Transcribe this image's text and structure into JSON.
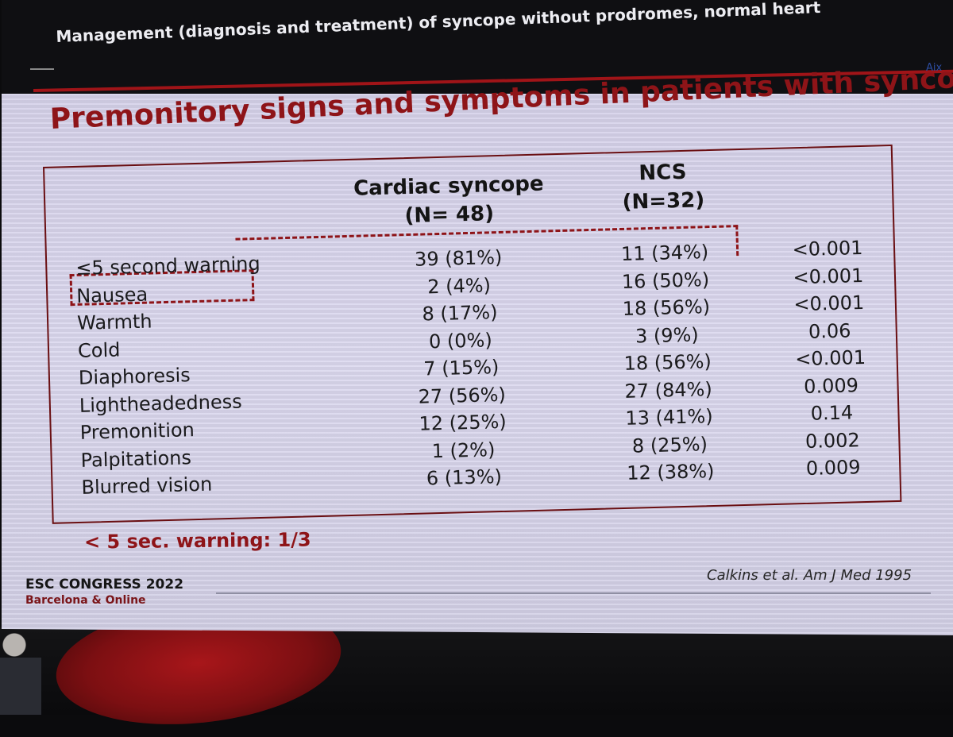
{
  "header": {
    "title": "Management (diagnosis and treatment) of syncope without prodromes, normal heart",
    "logo_text": "Aix"
  },
  "slide": {
    "title": "Premonitory signs and symptoms in patients with syncope",
    "columns": {
      "cardiac_name": "Cardiac syncope",
      "cardiac_n": "(N= 48)",
      "ncs_name": "NCS",
      "ncs_n": "(N=32)"
    },
    "rows": [
      {
        "label": "≤5 second warning",
        "cardiac": "39 (81%)",
        "ncs": "11 (34%)",
        "p": "<0.001"
      },
      {
        "label": "Nausea",
        "cardiac": "2 (4%)",
        "ncs": "16 (50%)",
        "p": "<0.001"
      },
      {
        "label": "Warmth",
        "cardiac": "8 (17%)",
        "ncs": "18 (56%)",
        "p": "<0.001"
      },
      {
        "label": "Cold",
        "cardiac": "0 (0%)",
        "ncs": "3 (9%)",
        "p": "0.06"
      },
      {
        "label": "Diaphoresis",
        "cardiac": "7 (15%)",
        "ncs": "18 (56%)",
        "p": "<0.001"
      },
      {
        "label": "Lightheadedness",
        "cardiac": "27 (56%)",
        "ncs": "27 (84%)",
        "p": "0.009"
      },
      {
        "label": "Premonition",
        "cardiac": "12 (25%)",
        "ncs": "13 (41%)",
        "p": "0.14"
      },
      {
        "label": "Palpitations",
        "cardiac": "1 (2%)",
        "ncs": "8 (25%)",
        "p": "0.002"
      },
      {
        "label": "Blurred vision",
        "cardiac": "6 (13%)",
        "ncs": "12 (38%)",
        "p": "0.009"
      }
    ],
    "note": "< 5 sec. warning: 1/3",
    "reference": "Calkins et al. Am J Med 1995"
  },
  "footer": {
    "congress": "ESC CONGRESS 2022",
    "location": "Barcelona & Online"
  }
}
